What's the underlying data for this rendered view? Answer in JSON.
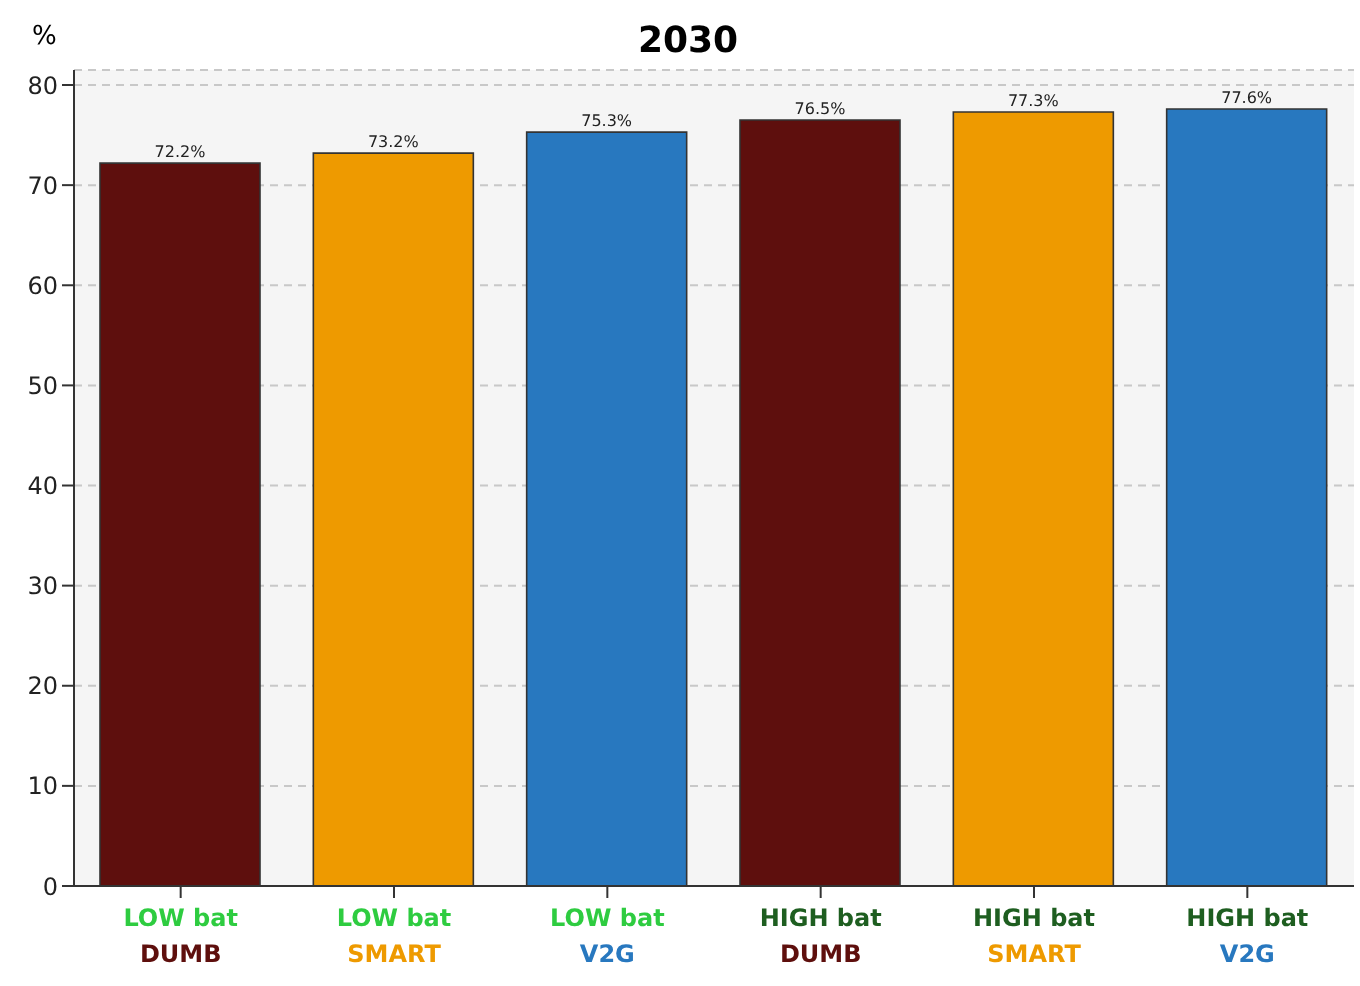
{
  "chart_data": {
    "type": "bar",
    "title": "2030",
    "ylabel": "%",
    "categories": [
      "LOW bat\nDUMB",
      "LOW bat\nSMART",
      "LOW bat\nV2G",
      "HIGH bat\nDUMB",
      "HIGH bat\nSMART",
      "HIGH bat\nV2G"
    ],
    "values": [
      72.2,
      73.2,
      75.3,
      76.5,
      77.3,
      77.6
    ],
    "colors": [
      "#5e0f0d",
      "#ee9a00",
      "#2878bf",
      "#5e0f0d",
      "#ee9a00",
      "#2878bf"
    ],
    "value_labels": [
      "72.2%",
      "73.2%",
      "75.3%",
      "76.5%",
      "77.3%",
      "77.6%"
    ],
    "ylim": [
      0,
      81.5
    ],
    "yticks": [
      0,
      10,
      20,
      30,
      40,
      50,
      60,
      70,
      80
    ],
    "grid": "y",
    "legend": false
  }
}
